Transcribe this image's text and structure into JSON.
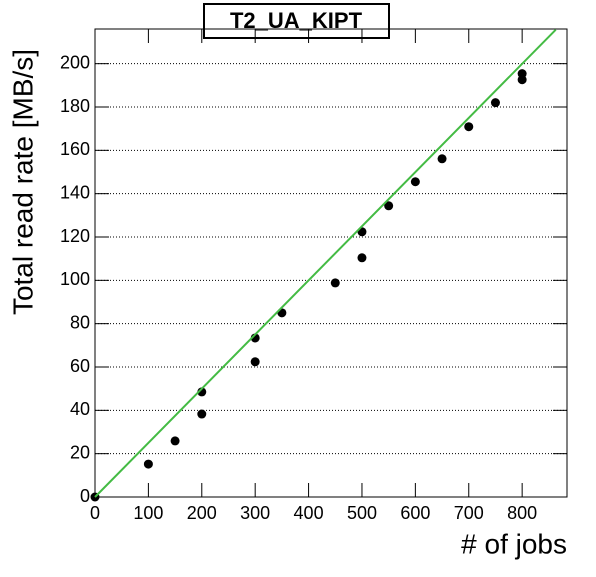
{
  "chart_data": {
    "type": "scatter",
    "title": "T2_UA_KIPT",
    "x_label": "# of jobs",
    "y_label": "Total read rate [MB/s]",
    "xlim": [
      0,
      884
    ],
    "ylim": [
      0,
      216
    ],
    "xticks": [
      0,
      100,
      200,
      300,
      400,
      500,
      600,
      700,
      800
    ],
    "yticks": [
      0,
      20,
      40,
      60,
      80,
      100,
      120,
      140,
      160,
      180,
      200
    ],
    "grid": true,
    "series": [
      {
        "color": "#000000",
        "x": [
          0,
          100,
          150,
          200,
          200,
          300,
          300,
          350,
          450,
          500,
          500,
          550,
          600,
          650,
          700,
          750,
          800,
          800
        ],
        "values": [
          0,
          15.2,
          25.9,
          48.5,
          38.3,
          73.4,
          62.4,
          85,
          98.8,
          122.4,
          110.4,
          134.4,
          145.5,
          156.1,
          170.9,
          182,
          195.4,
          192.6
        ]
      },
      {
        "color": "#44bb44",
        "line": true,
        "x": [
          0,
          863
        ],
        "values": [
          0,
          215.7
        ]
      }
    ]
  }
}
